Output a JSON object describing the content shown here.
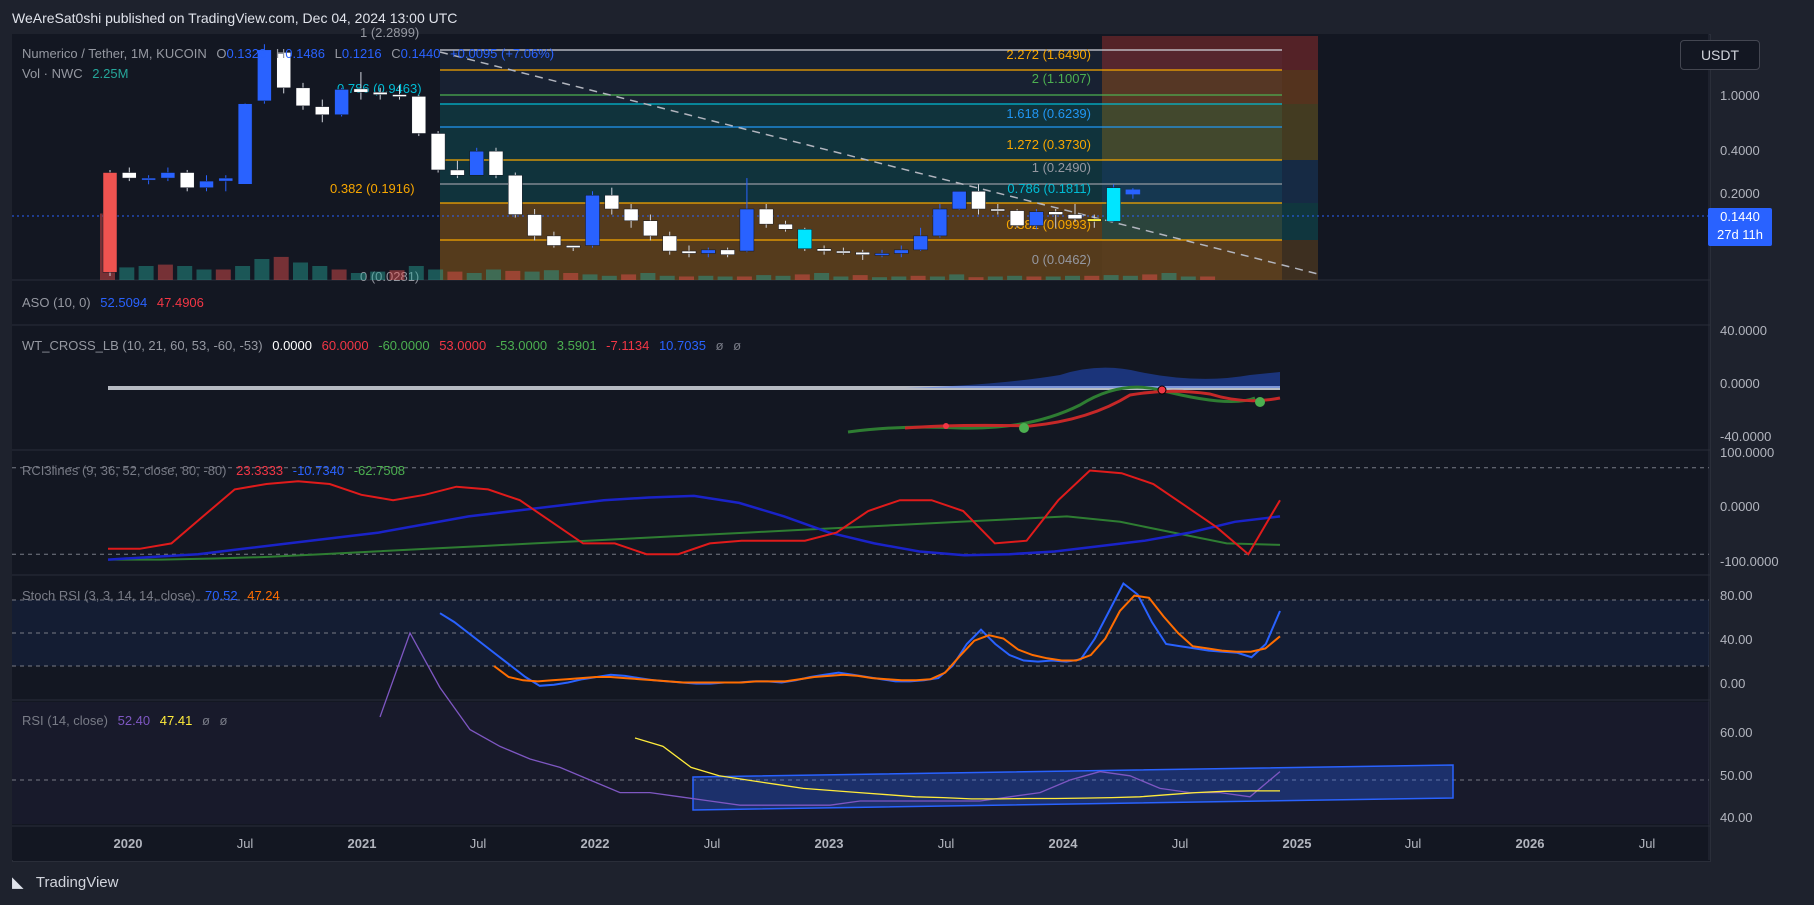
{
  "header": {
    "published": "WeAreSat0shi published on TradingView.com, Dec 04, 2024 13:00 UTC"
  },
  "footer": {
    "brand": "TradingView",
    "logo_icon": "tradingview-logo-icon"
  },
  "currency_button": "USDT",
  "price_badge": {
    "price": "0.1440",
    "countdown": "27d 11h"
  },
  "main_legend": {
    "symbol": "Numerico / Tether, 1M, KUCOIN",
    "o_label": "O",
    "o": "0.1328",
    "h_label": "H",
    "h": "0.1486",
    "l_label": "L",
    "l": "0.1216",
    "c_label": "C",
    "c": "0.1440",
    "change": "+0.0095 (+7.06%)",
    "vol_label": "Vol · NWC",
    "vol": "2.25M"
  },
  "indicators": {
    "aso": {
      "label": "ASO (10, 0)",
      "v1": "52.5094",
      "v2": "47.4906"
    },
    "wt": {
      "label": "WT_CROSS_LB (10, 21, 60, 53, -60, -53)",
      "values": [
        "0.0000",
        "60.0000",
        "-60.0000",
        "53.0000",
        "-53.0000",
        "3.5901",
        "-7.1134",
        "10.7035",
        "ø",
        "ø"
      ]
    },
    "rci": {
      "label": "RCI3lines (9, 36, 52, close, 80, -80)",
      "v1": "23.3333",
      "v2": "-10.7340",
      "v3": "-62.7508"
    },
    "stoch": {
      "label": "Stoch RSI (3, 3, 14, 14, close)",
      "k": "70.52",
      "d": "47.24"
    },
    "rsi": {
      "label": "RSI (14, close)",
      "v1": "52.40",
      "v2": "47.41",
      "n1": "ø",
      "n2": "ø"
    }
  },
  "fib_labels_left": [
    {
      "text": "1 (2.2899)"
    },
    {
      "text": "0.786 (0.9463)"
    },
    {
      "text": "0.382 (0.1916)"
    },
    {
      "text": "0 (0.0281)"
    }
  ],
  "fib_labels_right": [
    {
      "text": "2.272 (1.6490)",
      "color": "#f7a600"
    },
    {
      "text": "2 (1.1007)",
      "color": "#4caf50"
    },
    {
      "text": "1.618 (0.6239)",
      "color": "#2196f3"
    },
    {
      "text": "1.272 (0.3730)",
      "color": "#f7a600"
    },
    {
      "text": "1 (0.2490)",
      "color": "#9598a1"
    },
    {
      "text": "0.786 (0.1811)",
      "color": "#00bcd4"
    },
    {
      "text": "0.382 (0.0993)",
      "color": "#f7a600"
    },
    {
      "text": "0 (0.0462)",
      "color": "#9598a1"
    }
  ],
  "price_axis": [
    "1.0000",
    "0.4000",
    "0.2000"
  ],
  "wt_axis": [
    "40.0000",
    "0.0000",
    "-40.0000"
  ],
  "rci_axis": [
    "100.0000",
    "0.0000",
    "-100.0000"
  ],
  "stoch_axis": [
    "80.00",
    "40.00",
    "0.00"
  ],
  "rsi_axis": [
    "60.00",
    "50.00",
    "40.00"
  ],
  "time_axis": [
    "2020",
    "Jul",
    "2021",
    "Jul",
    "2022",
    "Jul",
    "2023",
    "Jul",
    "2024",
    "Jul",
    "2025",
    "Jul",
    "2026",
    "Jul"
  ],
  "chart_data": {
    "type": "candlestick",
    "ylim": [
      0.028,
      2.3
    ],
    "log_scale": true,
    "candles": [
      {
        "o": 0.2,
        "h": 0.21,
        "l": 0.028,
        "c": 0.03
      },
      {
        "o": 0.2,
        "h": 0.22,
        "l": 0.17,
        "c": 0.18
      },
      {
        "o": 0.18,
        "h": 0.19,
        "l": 0.16,
        "c": 0.18
      },
      {
        "o": 0.18,
        "h": 0.22,
        "l": 0.17,
        "c": 0.2
      },
      {
        "o": 0.2,
        "h": 0.21,
        "l": 0.14,
        "c": 0.15
      },
      {
        "o": 0.15,
        "h": 0.19,
        "l": 0.14,
        "c": 0.17
      },
      {
        "o": 0.17,
        "h": 0.19,
        "l": 0.14,
        "c": 0.18
      },
      {
        "o": 0.16,
        "h": 0.75,
        "l": 0.16,
        "c": 0.74
      },
      {
        "o": 0.78,
        "h": 2.29,
        "l": 0.74,
        "c": 2.06
      },
      {
        "o": 1.96,
        "h": 1.98,
        "l": 0.9,
        "c": 1.0
      },
      {
        "o": 1.0,
        "h": 1.1,
        "l": 0.66,
        "c": 0.71
      },
      {
        "o": 0.7,
        "h": 0.8,
        "l": 0.52,
        "c": 0.6
      },
      {
        "o": 0.6,
        "h": 1.0,
        "l": 0.58,
        "c": 0.97
      },
      {
        "o": 0.98,
        "h": 1.35,
        "l": 0.8,
        "c": 0.92
      },
      {
        "o": 0.92,
        "h": 1.0,
        "l": 0.8,
        "c": 0.88
      },
      {
        "o": 0.88,
        "h": 1.05,
        "l": 0.8,
        "c": 0.85
      },
      {
        "o": 0.85,
        "h": 0.87,
        "l": 0.4,
        "c": 0.42
      },
      {
        "o": 0.42,
        "h": 0.44,
        "l": 0.2,
        "c": 0.21
      },
      {
        "o": 0.21,
        "h": 0.25,
        "l": 0.18,
        "c": 0.19
      },
      {
        "o": 0.19,
        "h": 0.32,
        "l": 0.19,
        "c": 0.3
      },
      {
        "o": 0.3,
        "h": 0.32,
        "l": 0.18,
        "c": 0.19
      },
      {
        "o": 0.19,
        "h": 0.2,
        "l": 0.085,
        "c": 0.09
      },
      {
        "o": 0.09,
        "h": 0.1,
        "l": 0.055,
        "c": 0.06
      },
      {
        "o": 0.06,
        "h": 0.065,
        "l": 0.048,
        "c": 0.05
      },
      {
        "o": 0.05,
        "h": 0.05,
        "l": 0.045,
        "c": 0.048
      },
      {
        "o": 0.05,
        "h": 0.14,
        "l": 0.048,
        "c": 0.13
      },
      {
        "o": 0.13,
        "h": 0.15,
        "l": 0.09,
        "c": 0.1
      },
      {
        "o": 0.1,
        "h": 0.11,
        "l": 0.07,
        "c": 0.08
      },
      {
        "o": 0.08,
        "h": 0.09,
        "l": 0.055,
        "c": 0.06
      },
      {
        "o": 0.06,
        "h": 0.065,
        "l": 0.042,
        "c": 0.045
      },
      {
        "o": 0.045,
        "h": 0.05,
        "l": 0.04,
        "c": 0.043
      },
      {
        "o": 0.043,
        "h": 0.048,
        "l": 0.04,
        "c": 0.046
      },
      {
        "o": 0.046,
        "h": 0.048,
        "l": 0.04,
        "c": 0.042
      },
      {
        "o": 0.045,
        "h": 0.18,
        "l": 0.044,
        "c": 0.1
      },
      {
        "o": 0.1,
        "h": 0.11,
        "l": 0.07,
        "c": 0.075
      },
      {
        "o": 0.075,
        "h": 0.08,
        "l": 0.065,
        "c": 0.068
      },
      {
        "o": 0.068,
        "h": 0.07,
        "l": 0.045,
        "c": 0.047
      },
      {
        "o": 0.047,
        "h": 0.05,
        "l": 0.042,
        "c": 0.045
      },
      {
        "o": 0.045,
        "h": 0.048,
        "l": 0.042,
        "c": 0.044
      },
      {
        "o": 0.044,
        "h": 0.046,
        "l": 0.038,
        "c": 0.042
      },
      {
        "o": 0.042,
        "h": 0.046,
        "l": 0.04,
        "c": 0.043
      },
      {
        "o": 0.043,
        "h": 0.05,
        "l": 0.04,
        "c": 0.046
      },
      {
        "o": 0.046,
        "h": 0.07,
        "l": 0.045,
        "c": 0.06
      },
      {
        "o": 0.06,
        "h": 0.11,
        "l": 0.058,
        "c": 0.1
      },
      {
        "o": 0.1,
        "h": 0.14,
        "l": 0.098,
        "c": 0.14
      },
      {
        "o": 0.14,
        "h": 0.16,
        "l": 0.09,
        "c": 0.1
      },
      {
        "o": 0.1,
        "h": 0.11,
        "l": 0.09,
        "c": 0.097
      },
      {
        "o": 0.097,
        "h": 0.1,
        "l": 0.07,
        "c": 0.073
      },
      {
        "o": 0.073,
        "h": 0.1,
        "l": 0.068,
        "c": 0.095
      },
      {
        "o": 0.095,
        "h": 0.1,
        "l": 0.07,
        "c": 0.09
      },
      {
        "o": 0.09,
        "h": 0.11,
        "l": 0.078,
        "c": 0.083
      },
      {
        "o": 0.083,
        "h": 0.09,
        "l": 0.07,
        "c": 0.079
      },
      {
        "o": 0.079,
        "h": 0.16,
        "l": 0.078,
        "c": 0.15
      },
      {
        "o": 0.1328,
        "h": 0.1486,
        "l": 0.1216,
        "c": 0.144
      }
    ],
    "volume": [
      0.95,
      0.18,
      0.2,
      0.22,
      0.2,
      0.15,
      0.15,
      0.2,
      0.3,
      0.33,
      0.25,
      0.2,
      0.15,
      0.1,
      0.12,
      0.14,
      0.2,
      0.15,
      0.12,
      0.1,
      0.15,
      0.13,
      0.12,
      0.14,
      0.1,
      0.08,
      0.06,
      0.08,
      0.1,
      0.06,
      0.05,
      0.06,
      0.05,
      0.05,
      0.07,
      0.06,
      0.08,
      0.1,
      0.05,
      0.07,
      0.04,
      0.05,
      0.06,
      0.05,
      0.08,
      0.04,
      0.05,
      0.06,
      0.05,
      0.05,
      0.06,
      0.06,
      0.07,
      0.06,
      0.08,
      0.1,
      0.05,
      0.05
    ],
    "stoch_rsi_k": [
      68,
      60,
      50,
      40,
      30,
      20,
      10,
      2,
      3,
      5,
      8,
      10,
      12,
      11,
      9,
      7,
      6,
      5,
      4,
      4,
      5,
      5,
      6,
      6,
      5,
      7,
      10,
      12,
      14,
      12,
      10,
      8,
      6,
      6,
      7,
      9,
      20,
      40,
      53,
      40,
      30,
      25,
      24,
      25,
      24,
      26,
      45,
      70,
      95,
      85,
      60,
      40,
      38,
      36,
      34,
      33,
      32,
      28,
      40,
      70
    ],
    "stoch_rsi_d": [
      null,
      null,
      null,
      null,
      null,
      20,
      10,
      7,
      6,
      7,
      8,
      9,
      10,
      10,
      9,
      8,
      7,
      6,
      5,
      5,
      5,
      5,
      5,
      6,
      6,
      6,
      8,
      10,
      11,
      12,
      11,
      9,
      8,
      7,
      7,
      8,
      14,
      29,
      43,
      48,
      45,
      35,
      30,
      27,
      25,
      25,
      30,
      45,
      70,
      84,
      82,
      65,
      50,
      38,
      36,
      34,
      33,
      33,
      36,
      47
    ],
    "rsi": [
      65,
      85,
      72,
      62,
      58,
      55,
      53,
      50,
      47,
      47,
      46,
      45,
      44,
      44,
      44,
      44,
      45,
      45,
      45,
      45,
      45,
      46,
      47,
      50,
      52,
      51,
      48,
      47,
      47,
      46,
      52
    ],
    "rsi_ma": [
      60,
      58,
      53,
      51,
      50,
      49,
      48,
      47.5,
      47,
      46.5,
      46,
      45.8,
      45.5,
      45.5,
      45.6,
      45.6,
      45.7,
      45.8,
      46,
      46.5,
      47,
      47.3,
      47.4,
      47.41
    ],
    "rci_short": [
      -70,
      -70,
      -60,
      -10,
      40,
      50,
      55,
      50,
      30,
      20,
      30,
      45,
      40,
      20,
      -20,
      -60,
      -60,
      -80,
      -80,
      -60,
      -55,
      -55,
      -55,
      -40,
      0,
      20,
      20,
      0,
      -60,
      -55,
      20,
      75,
      70,
      50,
      10,
      -30,
      -80,
      20
    ],
    "rci_mid": [
      -90,
      -85,
      -80,
      -70,
      -60,
      -50,
      -40,
      -25,
      -10,
      0,
      10,
      20,
      25,
      28,
      15,
      -10,
      -40,
      -60,
      -75,
      -82,
      -80,
      -75,
      -65,
      -55,
      -40,
      -20,
      -10
    ],
    "rci_long": [
      -90,
      -90,
      -88,
      -85,
      -80,
      -75,
      -70,
      -65,
      -60,
      -55,
      -50,
      -45,
      -40,
      -35,
      -30,
      -25,
      -20,
      -15,
      -10,
      -20,
      -40,
      -60,
      -62.7508
    ]
  }
}
